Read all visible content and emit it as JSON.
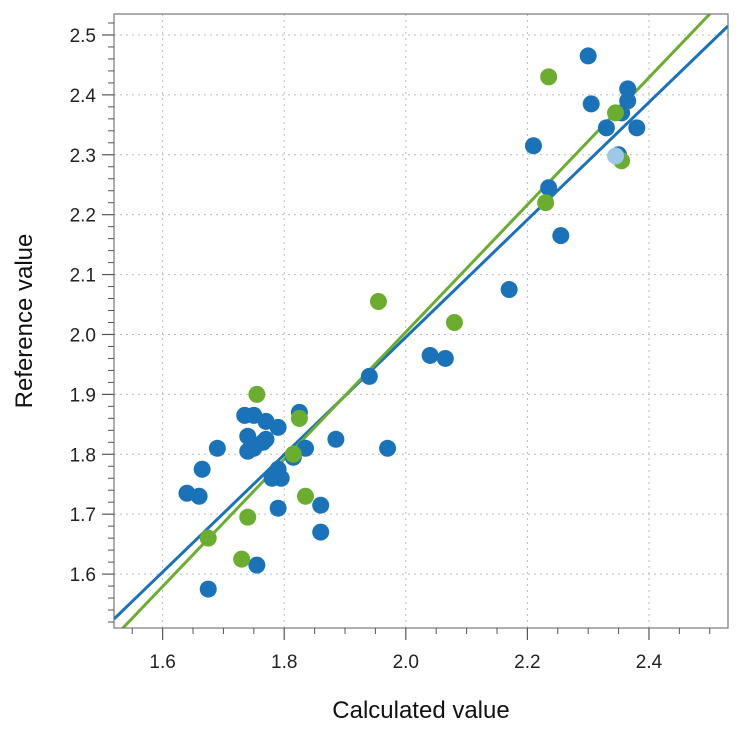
{
  "chart_data": {
    "type": "scatter",
    "xlabel": "Calculated value",
    "ylabel": "Reference value",
    "xlim": [
      1.52,
      2.53
    ],
    "ylim": [
      1.51,
      2.535
    ],
    "xticks": [
      "1.6",
      "1.8",
      "2.0",
      "2.2",
      "2.4"
    ],
    "yticks": [
      "1.6",
      "1.7",
      "1.8",
      "1.9",
      "2.0",
      "2.1",
      "2.2",
      "2.3",
      "2.4",
      "2.5"
    ],
    "grid": true,
    "series": [
      {
        "color": "#1a72b8",
        "points": [
          [
            1.64,
            1.735
          ],
          [
            1.66,
            1.73
          ],
          [
            1.665,
            1.775
          ],
          [
            1.69,
            1.81
          ],
          [
            1.735,
            1.865
          ],
          [
            1.75,
            1.865
          ],
          [
            1.74,
            1.83
          ],
          [
            1.74,
            1.805
          ],
          [
            1.75,
            1.81
          ],
          [
            1.765,
            1.82
          ],
          [
            1.77,
            1.855
          ],
          [
            1.77,
            1.825
          ],
          [
            1.79,
            1.845
          ],
          [
            1.78,
            1.76
          ],
          [
            1.795,
            1.76
          ],
          [
            1.79,
            1.775
          ],
          [
            1.79,
            1.71
          ],
          [
            1.815,
            1.795
          ],
          [
            1.825,
            1.87
          ],
          [
            1.835,
            1.81
          ],
          [
            1.885,
            1.825
          ],
          [
            1.86,
            1.715
          ],
          [
            1.86,
            1.67
          ],
          [
            1.755,
            1.615
          ],
          [
            1.675,
            1.575
          ],
          [
            1.94,
            1.93
          ],
          [
            1.97,
            1.81
          ],
          [
            2.04,
            1.965
          ],
          [
            2.065,
            1.96
          ],
          [
            2.17,
            2.075
          ],
          [
            2.21,
            2.315
          ],
          [
            2.235,
            2.245
          ],
          [
            2.255,
            2.165
          ],
          [
            2.3,
            2.465
          ],
          [
            2.305,
            2.385
          ],
          [
            2.33,
            2.345
          ],
          [
            2.355,
            2.37
          ],
          [
            2.365,
            2.41
          ],
          [
            2.365,
            2.39
          ],
          [
            2.38,
            2.345
          ],
          [
            2.35,
            2.3
          ]
        ],
        "fit": [
          [
            1.52,
            1.525
          ],
          [
            2.53,
            2.515
          ]
        ]
      },
      {
        "color": "#6aad2f",
        "points": [
          [
            1.675,
            1.66
          ],
          [
            1.73,
            1.625
          ],
          [
            1.74,
            1.695
          ],
          [
            1.755,
            1.9
          ],
          [
            1.815,
            1.8
          ],
          [
            1.825,
            1.86
          ],
          [
            1.835,
            1.73
          ],
          [
            1.955,
            2.055
          ],
          [
            2.08,
            2.02
          ],
          [
            2.23,
            2.22
          ],
          [
            2.235,
            2.43
          ],
          [
            2.345,
            2.37
          ],
          [
            2.355,
            2.29
          ]
        ],
        "fit": [
          [
            1.53,
            1.505
          ],
          [
            2.5,
            2.535
          ]
        ]
      }
    ],
    "highlight_points": [
      {
        "x": 2.345,
        "y": 2.298,
        "color": "#9fc7e8"
      }
    ]
  }
}
